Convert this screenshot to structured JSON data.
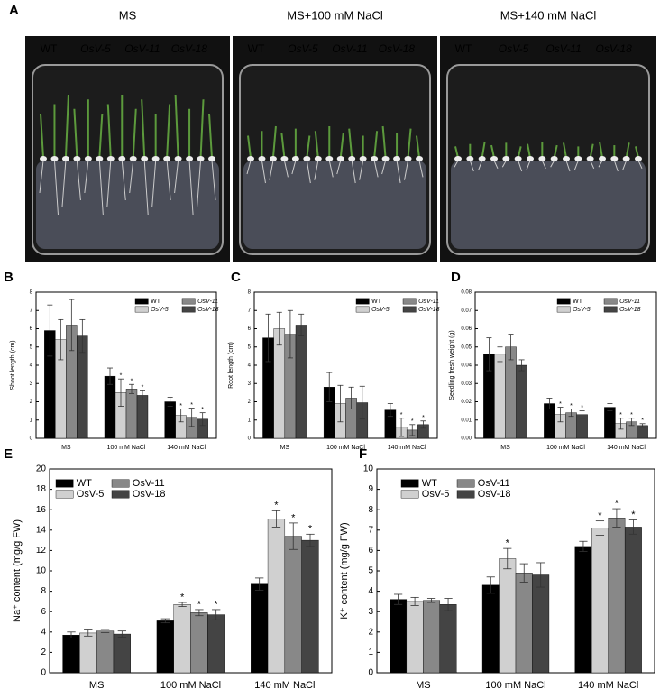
{
  "panel_a": {
    "label": "A",
    "conditions": [
      "MS",
      "MS+100 mM NaCl",
      "MS+140 mM NaCl"
    ],
    "genotypes": [
      "WT",
      "OsV-5",
      "OsV-11",
      "OsV-18"
    ]
  },
  "chart_data": [
    {
      "type": "bar",
      "label": "B",
      "y_label": "Shoot length (cm)",
      "categories": [
        "MS",
        "100 mM NaCl",
        "140 mM NaCl"
      ],
      "ylim": [
        0,
        8
      ],
      "yticks": [
        0,
        1,
        2,
        3,
        4,
        5,
        6,
        7,
        8
      ],
      "series": [
        {
          "name": "WT",
          "color": "#000000",
          "values": [
            5.9,
            3.4,
            2.0
          ],
          "errors": [
            1.4,
            0.45,
            0.25
          ],
          "significance": [
            null,
            null,
            null
          ]
        },
        {
          "name": "OsV-5",
          "color": "#d0d0d0",
          "values": [
            5.4,
            2.5,
            1.25
          ],
          "errors": [
            1.1,
            0.75,
            0.35
          ],
          "significance": [
            null,
            "*",
            "*"
          ]
        },
        {
          "name": "OsV-11",
          "color": "#888888",
          "values": [
            6.2,
            2.7,
            1.15
          ],
          "errors": [
            1.4,
            0.25,
            0.5
          ],
          "significance": [
            null,
            "*",
            "*"
          ]
        },
        {
          "name": "OsV-18",
          "color": "#444444",
          "values": [
            5.6,
            2.35,
            1.05
          ],
          "errors": [
            0.9,
            0.25,
            0.35
          ],
          "significance": [
            null,
            "*",
            "*"
          ]
        }
      ]
    },
    {
      "type": "bar",
      "label": "C",
      "y_label": "Root length (cm)",
      "categories": [
        "MS",
        "100 mM NaCl",
        "140 mM NaCl"
      ],
      "ylim": [
        0,
        8
      ],
      "yticks": [
        0,
        1,
        2,
        3,
        4,
        5,
        6,
        7,
        8
      ],
      "series": [
        {
          "name": "WT",
          "color": "#000000",
          "values": [
            5.5,
            2.8,
            1.55
          ],
          "errors": [
            1.3,
            0.8,
            0.35
          ],
          "significance": [
            null,
            null,
            null
          ]
        },
        {
          "name": "OsV-5",
          "color": "#d0d0d0",
          "values": [
            6.0,
            1.9,
            0.6
          ],
          "errors": [
            0.9,
            1.0,
            0.5
          ],
          "significance": [
            null,
            null,
            "*"
          ]
        },
        {
          "name": "OsV-11",
          "color": "#888888",
          "values": [
            5.7,
            2.2,
            0.45
          ],
          "errors": [
            1.3,
            0.6,
            0.3
          ],
          "significance": [
            null,
            null,
            "*"
          ]
        },
        {
          "name": "OsV-18",
          "color": "#444444",
          "values": [
            6.2,
            1.95,
            0.75
          ],
          "errors": [
            0.6,
            0.9,
            0.2
          ],
          "significance": [
            null,
            null,
            "*"
          ]
        }
      ]
    },
    {
      "type": "bar",
      "label": "D",
      "y_label": "Seedling fresh weight (g)",
      "categories": [
        "MS",
        "100 mM NaCl",
        "140 mM NaCl"
      ],
      "ylim": [
        0,
        0.08
      ],
      "yticks": [
        {
          "value": 0,
          "label": "0.00"
        },
        {
          "value": 0.01,
          "label": "0.01"
        },
        {
          "value": 0.02,
          "label": "0.02"
        },
        {
          "value": 0.03,
          "label": "0.03"
        },
        {
          "value": 0.04,
          "label": "0.04"
        },
        {
          "value": 0.05,
          "label": "0.05"
        },
        {
          "value": 0.06,
          "label": "0.06"
        },
        {
          "value": 0.07,
          "label": "0.07"
        },
        {
          "value": 0.08,
          "label": "0.08"
        }
      ],
      "series": [
        {
          "name": "WT",
          "color": "#000000",
          "values": [
            0.046,
            0.019,
            0.017
          ],
          "errors": [
            0.009,
            0.003,
            0.002
          ],
          "significance": [
            null,
            null,
            null
          ]
        },
        {
          "name": "OsV-5",
          "color": "#d0d0d0",
          "values": [
            0.046,
            0.013,
            0.008
          ],
          "errors": [
            0.004,
            0.004,
            0.003
          ],
          "significance": [
            null,
            "*",
            "*"
          ]
        },
        {
          "name": "OsV-11",
          "color": "#888888",
          "values": [
            0.05,
            0.014,
            0.009
          ],
          "errors": [
            0.007,
            0.002,
            0.002
          ],
          "significance": [
            null,
            "*",
            "*"
          ]
        },
        {
          "name": "OsV-18",
          "color": "#444444",
          "values": [
            0.04,
            0.013,
            0.007
          ],
          "errors": [
            0.003,
            0.002,
            0.001
          ],
          "significance": [
            null,
            "*",
            "*"
          ]
        }
      ]
    },
    {
      "type": "bar",
      "label": "E",
      "y_label": "Na⁺ content (mg/g FW)",
      "categories": [
        "MS",
        "100 mM NaCl",
        "140 mM NaCl"
      ],
      "ylim": [
        0,
        20
      ],
      "yticks": [
        0,
        2,
        4,
        6,
        8,
        10,
        12,
        14,
        16,
        18,
        20
      ],
      "series": [
        {
          "name": "WT",
          "color": "#000000",
          "values": [
            3.7,
            5.1,
            8.7
          ],
          "errors": [
            0.3,
            0.2,
            0.6
          ],
          "significance": [
            null,
            null,
            null
          ]
        },
        {
          "name": "OsV-5",
          "color": "#d0d0d0",
          "values": [
            3.9,
            6.7,
            15.1
          ],
          "errors": [
            0.3,
            0.2,
            0.8
          ],
          "significance": [
            null,
            "*",
            "*"
          ]
        },
        {
          "name": "OsV-11",
          "color": "#888888",
          "values": [
            4.1,
            5.9,
            13.4
          ],
          "errors": [
            0.15,
            0.3,
            1.3
          ],
          "significance": [
            null,
            "*",
            "*"
          ]
        },
        {
          "name": "OsV-18",
          "color": "#444444",
          "values": [
            3.8,
            5.7,
            13.0
          ],
          "errors": [
            0.3,
            0.5,
            0.6
          ],
          "significance": [
            null,
            "*",
            "*"
          ]
        }
      ]
    },
    {
      "type": "bar",
      "label": "F",
      "y_label": "K⁺ content (mg/g FW)",
      "categories": [
        "MS",
        "100 mM NaCl",
        "140 mM NaCl"
      ],
      "ylim": [
        0,
        10
      ],
      "yticks": [
        0,
        1,
        2,
        3,
        4,
        5,
        6,
        7,
        8,
        9,
        10
      ],
      "series": [
        {
          "name": "WT",
          "color": "#000000",
          "values": [
            3.6,
            4.3,
            6.2
          ],
          "errors": [
            0.25,
            0.4,
            0.25
          ],
          "significance": [
            null,
            null,
            null
          ]
        },
        {
          "name": "OsV-5",
          "color": "#d0d0d0",
          "values": [
            3.5,
            5.6,
            7.1
          ],
          "errors": [
            0.2,
            0.5,
            0.35
          ],
          "significance": [
            null,
            "*",
            "*"
          ]
        },
        {
          "name": "OsV-11",
          "color": "#888888",
          "values": [
            3.55,
            4.9,
            7.6
          ],
          "errors": [
            0.1,
            0.45,
            0.45
          ],
          "significance": [
            null,
            null,
            "*"
          ]
        },
        {
          "name": "OsV-18",
          "color": "#444444",
          "values": [
            3.35,
            4.8,
            7.15
          ],
          "errors": [
            0.3,
            0.6,
            0.35
          ],
          "significance": [
            null,
            null,
            "*"
          ]
        }
      ]
    }
  ]
}
